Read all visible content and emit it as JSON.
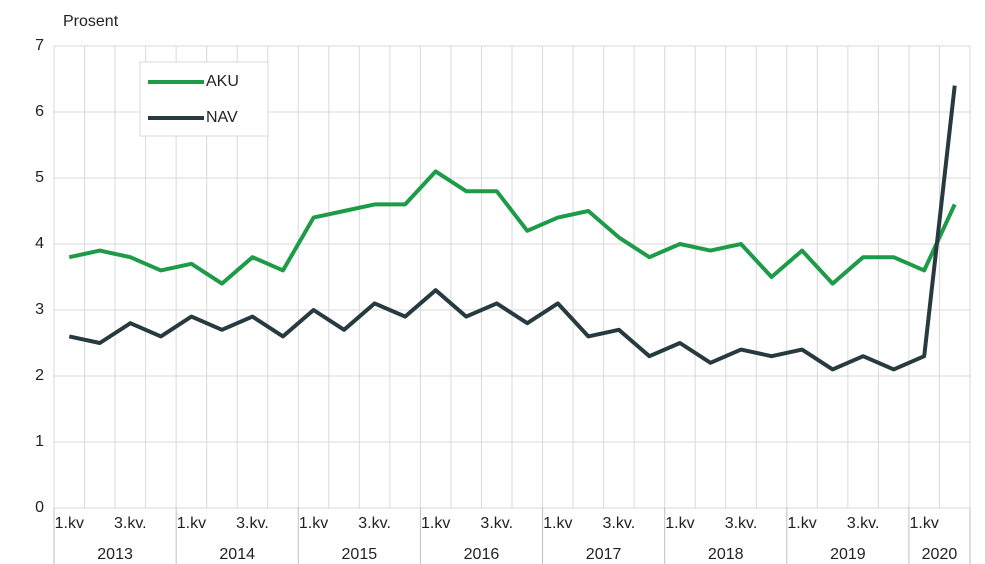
{
  "chart_data": {
    "type": "line",
    "y_label": "Prosent",
    "categories": [
      "1.kv",
      null,
      "3.kv.",
      null,
      "1.kv",
      null,
      "3.kv.",
      null,
      "1.kv",
      null,
      "3.kv.",
      null,
      "1.kv",
      null,
      "3.kv.",
      null,
      "1.kv",
      null,
      "3.kv.",
      null,
      "1.kv",
      null,
      "3.kv.",
      null,
      "1.kv",
      null,
      "3.kv.",
      null,
      "1.kv",
      null
    ],
    "groups": [
      {
        "label": "2013",
        "span": 4
      },
      {
        "label": "2014",
        "span": 4
      },
      {
        "label": "2015",
        "span": 4
      },
      {
        "label": "2016",
        "span": 4
      },
      {
        "label": "2017",
        "span": 4
      },
      {
        "label": "2018",
        "span": 4
      },
      {
        "label": "2019",
        "span": 4
      },
      {
        "label": "2020",
        "span": 2
      }
    ],
    "series": [
      {
        "name": "AKU",
        "color": "#1e9b48",
        "values": [
          3.8,
          3.9,
          3.8,
          3.6,
          3.7,
          3.4,
          3.8,
          3.6,
          4.4,
          4.5,
          4.6,
          4.6,
          5.1,
          4.8,
          4.8,
          4.2,
          4.4,
          4.5,
          4.1,
          3.8,
          4.0,
          3.9,
          4.0,
          3.5,
          3.9,
          3.4,
          3.8,
          3.8,
          3.6,
          4.6
        ]
      },
      {
        "name": "NAV",
        "color": "#263a40",
        "values": [
          2.6,
          2.5,
          2.8,
          2.6,
          2.9,
          2.7,
          2.9,
          2.6,
          3.0,
          2.7,
          3.1,
          2.9,
          3.3,
          2.9,
          3.1,
          2.8,
          3.1,
          2.6,
          2.7,
          2.3,
          2.5,
          2.2,
          2.4,
          2.3,
          2.4,
          2.1,
          2.3,
          2.1,
          2.3,
          6.4
        ]
      }
    ],
    "ylim": [
      0,
      7
    ],
    "yticks": [
      0,
      1,
      2,
      3,
      4,
      5,
      6,
      7
    ],
    "grid": true,
    "legend": "upper-left"
  }
}
